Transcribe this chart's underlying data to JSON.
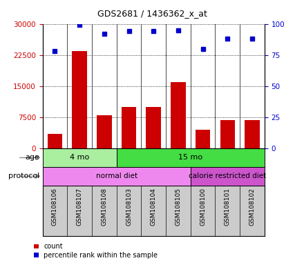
{
  "title": "GDS2681 / 1436362_x_at",
  "samples": [
    "GSM108106",
    "GSM108107",
    "GSM108108",
    "GSM108103",
    "GSM108104",
    "GSM108105",
    "GSM108100",
    "GSM108101",
    "GSM108102"
  ],
  "counts": [
    3500,
    23500,
    8000,
    10000,
    10000,
    16000,
    4500,
    6800,
    6800
  ],
  "percentile_ranks": [
    78,
    99,
    92,
    94,
    94,
    95,
    80,
    88,
    88
  ],
  "ylim_left": [
    0,
    30000
  ],
  "ylim_right": [
    0,
    100
  ],
  "yticks_left": [
    0,
    7500,
    15000,
    22500,
    30000
  ],
  "yticks_right": [
    0,
    25,
    50,
    75,
    100
  ],
  "bar_color": "#cc0000",
  "dot_color": "#0000cc",
  "age_groups": [
    {
      "label": "4 mo",
      "start": 0,
      "end": 3,
      "color": "#aaeea0"
    },
    {
      "label": "15 mo",
      "start": 3,
      "end": 9,
      "color": "#44dd44"
    }
  ],
  "protocol_groups": [
    {
      "label": "normal diet",
      "start": 0,
      "end": 6,
      "color": "#ee88ee"
    },
    {
      "label": "calorie restricted diet",
      "start": 6,
      "end": 9,
      "color": "#cc55cc"
    }
  ],
  "tick_label_color_left": "#cc0000",
  "tick_label_color_right": "#0000cc",
  "sample_bg": "#cccccc"
}
